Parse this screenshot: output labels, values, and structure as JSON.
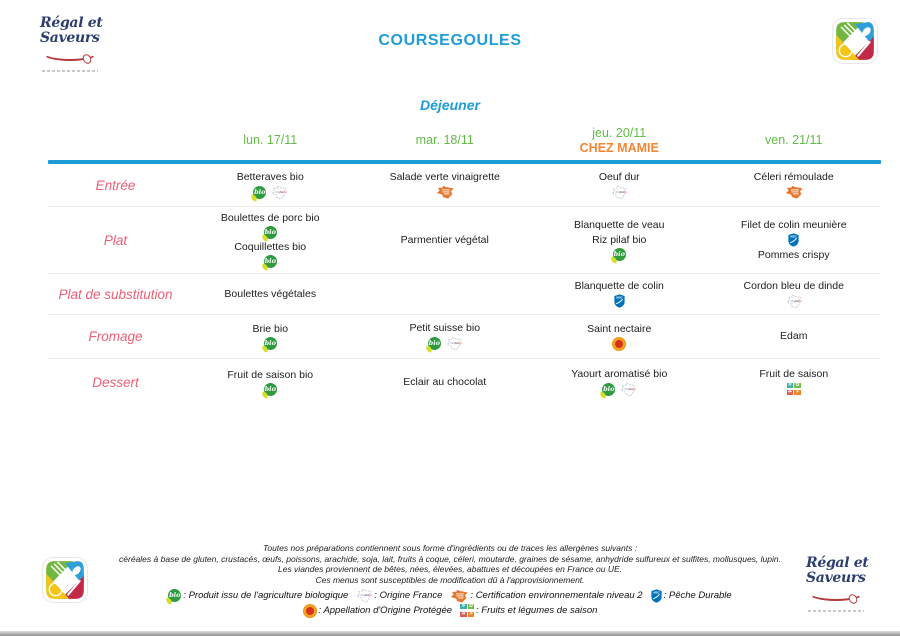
{
  "brand": {
    "line1": "Régal et",
    "line2": "Saveurs"
  },
  "title": "COURSEGOULES",
  "meal": "Déjeuner",
  "columns": [
    {
      "day": "lun. 17/11",
      "note": ""
    },
    {
      "day": "mar. 18/11",
      "note": ""
    },
    {
      "day": "jeu. 20/11",
      "note": "CHEZ MAMIE"
    },
    {
      "day": "ven. 21/11",
      "note": ""
    }
  ],
  "rows": [
    {
      "label": "Entrée",
      "cells": [
        {
          "items": [
            {
              "name": "Betteraves bio",
              "icons": [
                "bio",
                "origine-france"
              ]
            }
          ]
        },
        {
          "items": [
            {
              "name": "Salade verte vinaigrette",
              "icons": [
                "cert-env"
              ]
            }
          ]
        },
        {
          "items": [
            {
              "name": "Oeuf dur",
              "icons": [
                "origine-france"
              ]
            }
          ]
        },
        {
          "items": [
            {
              "name": "Céleri rémoulade",
              "icons": [
                "cert-env"
              ]
            }
          ]
        }
      ]
    },
    {
      "label": "Plat",
      "cells": [
        {
          "items": [
            {
              "name": "Boulettes de porc bio",
              "icons": [
                "bio"
              ]
            },
            {
              "name": "Coquillettes bio",
              "icons": [
                "bio"
              ]
            }
          ]
        },
        {
          "items": [
            {
              "name": "Parmentier végétal",
              "icons": []
            }
          ]
        },
        {
          "items": [
            {
              "name": "Blanquette de veau",
              "icons": []
            },
            {
              "name": "Riz pilaf bio",
              "icons": [
                "bio"
              ]
            }
          ]
        },
        {
          "items": [
            {
              "name": "Filet de colin meunière",
              "icons": [
                "msc"
              ]
            },
            {
              "name": "Pommes crispy",
              "icons": []
            }
          ]
        }
      ]
    },
    {
      "label": "Plat de substitution",
      "cells": [
        {
          "items": [
            {
              "name": "Boulettes végétales",
              "icons": []
            }
          ]
        },
        {
          "items": []
        },
        {
          "items": [
            {
              "name": "Blanquette de colin",
              "icons": [
                "msc"
              ]
            }
          ]
        },
        {
          "items": [
            {
              "name": "Cordon bleu de dinde",
              "icons": [
                "origine-france"
              ]
            }
          ]
        }
      ]
    },
    {
      "label": "Fromage",
      "cells": [
        {
          "items": [
            {
              "name": "Brie bio",
              "icons": [
                "bio"
              ]
            }
          ]
        },
        {
          "items": [
            {
              "name": "Petit suisse bio",
              "icons": [
                "bio",
                "origine-france"
              ]
            }
          ]
        },
        {
          "items": [
            {
              "name": "Saint nectaire",
              "icons": [
                "aop"
              ]
            }
          ]
        },
        {
          "items": [
            {
              "name": "Edam",
              "icons": []
            }
          ]
        }
      ]
    },
    {
      "label": "Dessert",
      "cells": [
        {
          "items": [
            {
              "name": "Fruit de saison bio",
              "icons": [
                "bio"
              ]
            }
          ]
        },
        {
          "items": [
            {
              "name": "Eclair au chocolat",
              "icons": []
            }
          ]
        },
        {
          "items": [
            {
              "name": "Yaourt aromatisé bio",
              "icons": [
                "bio",
                "origine-france"
              ]
            }
          ]
        },
        {
          "items": [
            {
              "name": "Fruit de saison",
              "icons": [
                "saison"
              ]
            }
          ]
        }
      ]
    }
  ],
  "footer": {
    "allergens_intro": "Toutes nos préparations contiennent sous forme d'ingrédients ou de traces les allergènes suivants :",
    "allergens_list": "céréales à base de gluten, crustacés, œufs, poissons, arachide, soja, lait, fruits à coque, céleri, moutarde, graines de sésame, anhydride sulfureux et sulfites, mollusques, lupin.",
    "meat_origin": "Les viandes proviennent de bêtes, nées, élevées, abattues et découpées en France ou UE.",
    "supply_note": "Ces menus sont susceptibles de modification dû à l'approvisionnement.",
    "legend": [
      {
        "icon": "bio",
        "label": "Produit issu de l'agriculture biologique"
      },
      {
        "icon": "origine-france",
        "label": "Origine France"
      },
      {
        "icon": "cert-env",
        "label": "Certification environnementale niveau 2"
      },
      {
        "icon": "msc",
        "label": "Pêche Durable"
      },
      {
        "icon": "aop",
        "label": "Appellation d'Origine Protégée"
      },
      {
        "icon": "saison",
        "label": "Fruits et légumes de saison"
      }
    ]
  },
  "colors": {
    "title_blue": "#1E9CD7",
    "day_green": "#62BB46",
    "note_orange": "#F58634",
    "row_label_pink": "#EE5E75",
    "bio_green": "#2E9B3F",
    "msc_blue": "#0072BC",
    "aop_red": "#D63220",
    "cert_orange": "#E8772E",
    "season_teal": "#3BADA8"
  }
}
